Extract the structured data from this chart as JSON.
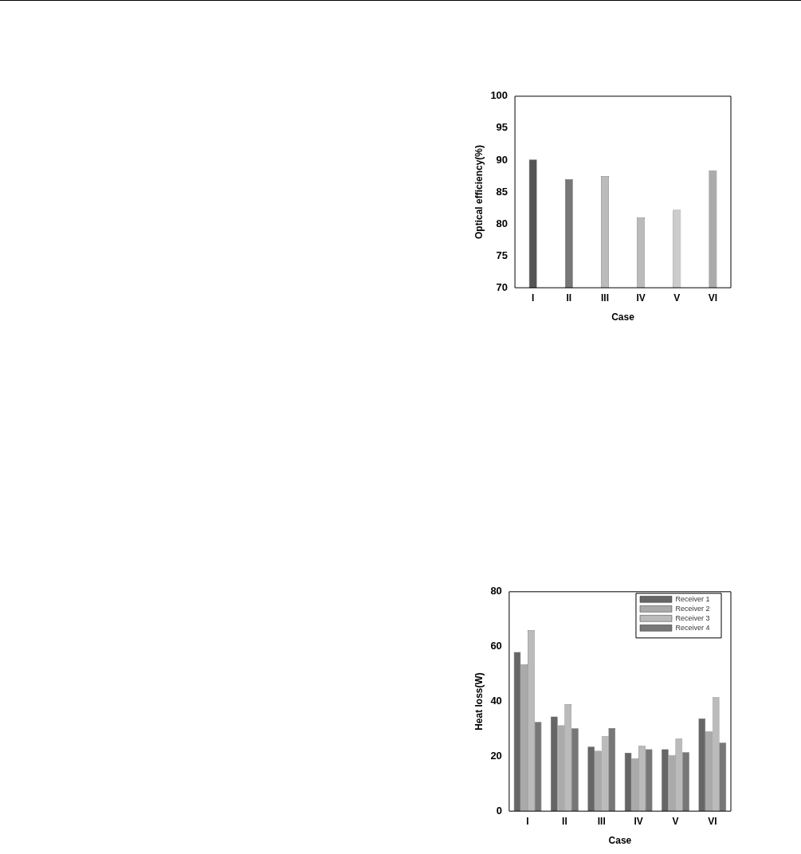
{
  "chart_data": [
    {
      "type": "bar",
      "xlabel": "Case",
      "ylabel": "Optical efficiency(%)",
      "categories": [
        "I",
        "II",
        "III",
        "IV",
        "V",
        "VI"
      ],
      "values": [
        90.1,
        87.0,
        87.5,
        81.0,
        82.2,
        88.4
      ],
      "colors": [
        "#555555",
        "#777777",
        "#bbbbbb",
        "#bbbbbb",
        "#cccccc",
        "#aaaaaa"
      ],
      "ylim": [
        70,
        100
      ],
      "yticks": [
        70,
        75,
        80,
        85,
        90,
        95,
        100
      ],
      "grid": false,
      "legend": false
    },
    {
      "type": "bar",
      "xlabel": "Case",
      "ylabel": "Heat loss(W)",
      "categories": [
        "I",
        "II",
        "III",
        "IV",
        "V",
        "VI"
      ],
      "series": [
        {
          "name": "Receiver 1",
          "color": "#666666",
          "values": [
            58,
            34.5,
            23.5,
            21.3,
            22.6,
            33.8
          ]
        },
        {
          "name": "Receiver 2",
          "color": "#aaaaaa",
          "values": [
            53.5,
            31.3,
            22.0,
            19.3,
            20.5,
            29.0
          ]
        },
        {
          "name": "Receiver 3",
          "color": "#bbbbbb",
          "values": [
            66,
            39,
            27.3,
            23.8,
            26.4,
            41.5
          ]
        },
        {
          "name": "Receiver 4",
          "color": "#777777",
          "values": [
            32.5,
            30.2,
            30.3,
            22.6,
            21.5,
            25.0
          ]
        }
      ],
      "ylim": [
        0,
        80
      ],
      "yticks": [
        0,
        20,
        40,
        60,
        80
      ],
      "grid": false,
      "legend": "top right"
    }
  ]
}
